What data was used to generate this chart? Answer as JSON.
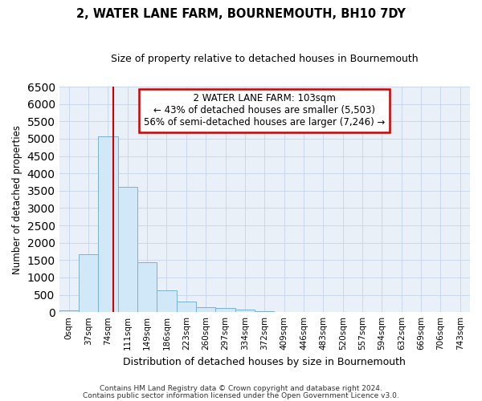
{
  "title": "2, WATER LANE FARM, BOURNEMOUTH, BH10 7DY",
  "subtitle": "Size of property relative to detached houses in Bournemouth",
  "xlabel": "Distribution of detached houses by size in Bournemouth",
  "ylabel": "Number of detached properties",
  "bar_labels": [
    "0sqm",
    "37sqm",
    "74sqm",
    "111sqm",
    "149sqm",
    "186sqm",
    "223sqm",
    "260sqm",
    "297sqm",
    "334sqm",
    "372sqm",
    "409sqm",
    "446sqm",
    "483sqm",
    "520sqm",
    "557sqm",
    "594sqm",
    "632sqm",
    "669sqm",
    "706sqm",
    "743sqm"
  ],
  "bar_values": [
    60,
    1670,
    5070,
    3600,
    1430,
    620,
    295,
    150,
    110,
    80,
    35,
    15,
    5,
    0,
    0,
    0,
    0,
    0,
    0,
    0,
    0
  ],
  "bar_color": "#d0e8f8",
  "bar_edge_color": "#7ab0d8",
  "ylim": [
    0,
    6500
  ],
  "yticks": [
    0,
    500,
    1000,
    1500,
    2000,
    2500,
    3000,
    3500,
    4000,
    4500,
    5000,
    5500,
    6000,
    6500
  ],
  "property_line_label": "2 WATER LANE FARM: 103sqm",
  "annotation_line1": "← 43% of detached houses are smaller (5,503)",
  "annotation_line2": "56% of semi-detached houses are larger (7,246) →",
  "annotation_box_color": "#ffffff",
  "annotation_box_edge": "#cc0000",
  "vline_color": "#cc0000",
  "grid_color": "#c8d8ec",
  "background_color": "#eaf0f8",
  "footer1": "Contains HM Land Registry data © Crown copyright and database right 2024.",
  "footer2": "Contains public sector information licensed under the Open Government Licence v3.0.",
  "bin_width": 37,
  "property_sqm": 103
}
